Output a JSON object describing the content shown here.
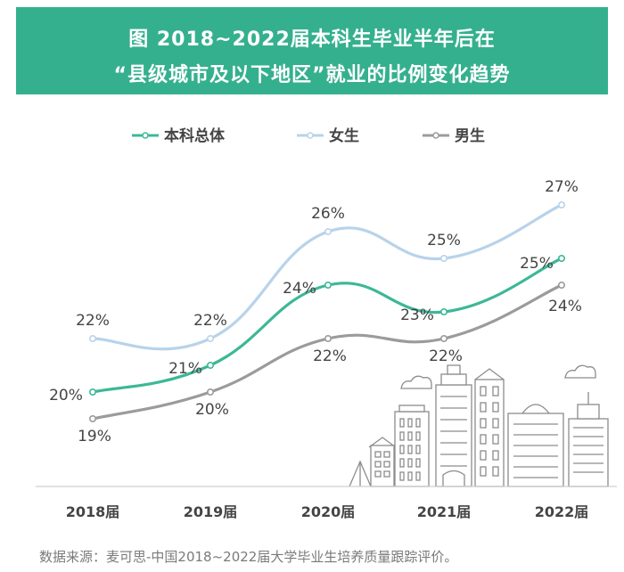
{
  "header": {
    "title_line1": "图  2018~2022届本科生毕业半年后在",
    "title_line2": "“县级城市及以下地区”就业的比例变化趋势",
    "background_color": "#35b08f"
  },
  "chart_data": {
    "type": "line",
    "title": "图  2018~2022届本科生毕业半年后在 “县级城市及以下地区”就业的比例变化趋势",
    "categories": [
      "2018届",
      "2019届",
      "2020届",
      "2021届",
      "2022届"
    ],
    "series": [
      {
        "name": "本科总体",
        "values": [
          20,
          21,
          24,
          23,
          25
        ],
        "labels": [
          "20%",
          "21%",
          "24%",
          "23%",
          "25%"
        ],
        "color": "#3cb896"
      },
      {
        "name": "女生",
        "values": [
          22,
          22,
          26,
          25,
          27
        ],
        "labels": [
          "22%",
          "22%",
          "26%",
          "25%",
          "27%"
        ],
        "color": "#b8d3ea"
      },
      {
        "name": "男生",
        "values": [
          19,
          20,
          22,
          22,
          24
        ],
        "labels": [
          "19%",
          "20%",
          "22%",
          "22%",
          "24%"
        ],
        "color": "#9b9b9b"
      }
    ],
    "xlabel": "",
    "ylabel": "",
    "ylim": [
      17,
      29
    ],
    "legend": "top-center",
    "grid": false,
    "annotations": [
      "city-skyline-illustration"
    ]
  },
  "source_note": "数据来源：麦可思-中国2018~2022届大学毕业生培养质量跟踪评价。",
  "colors": {
    "label_text": "#444444",
    "axis_text": "#444444",
    "axis_line": "#d0d0d0",
    "skyline": "#8c8c8c"
  }
}
